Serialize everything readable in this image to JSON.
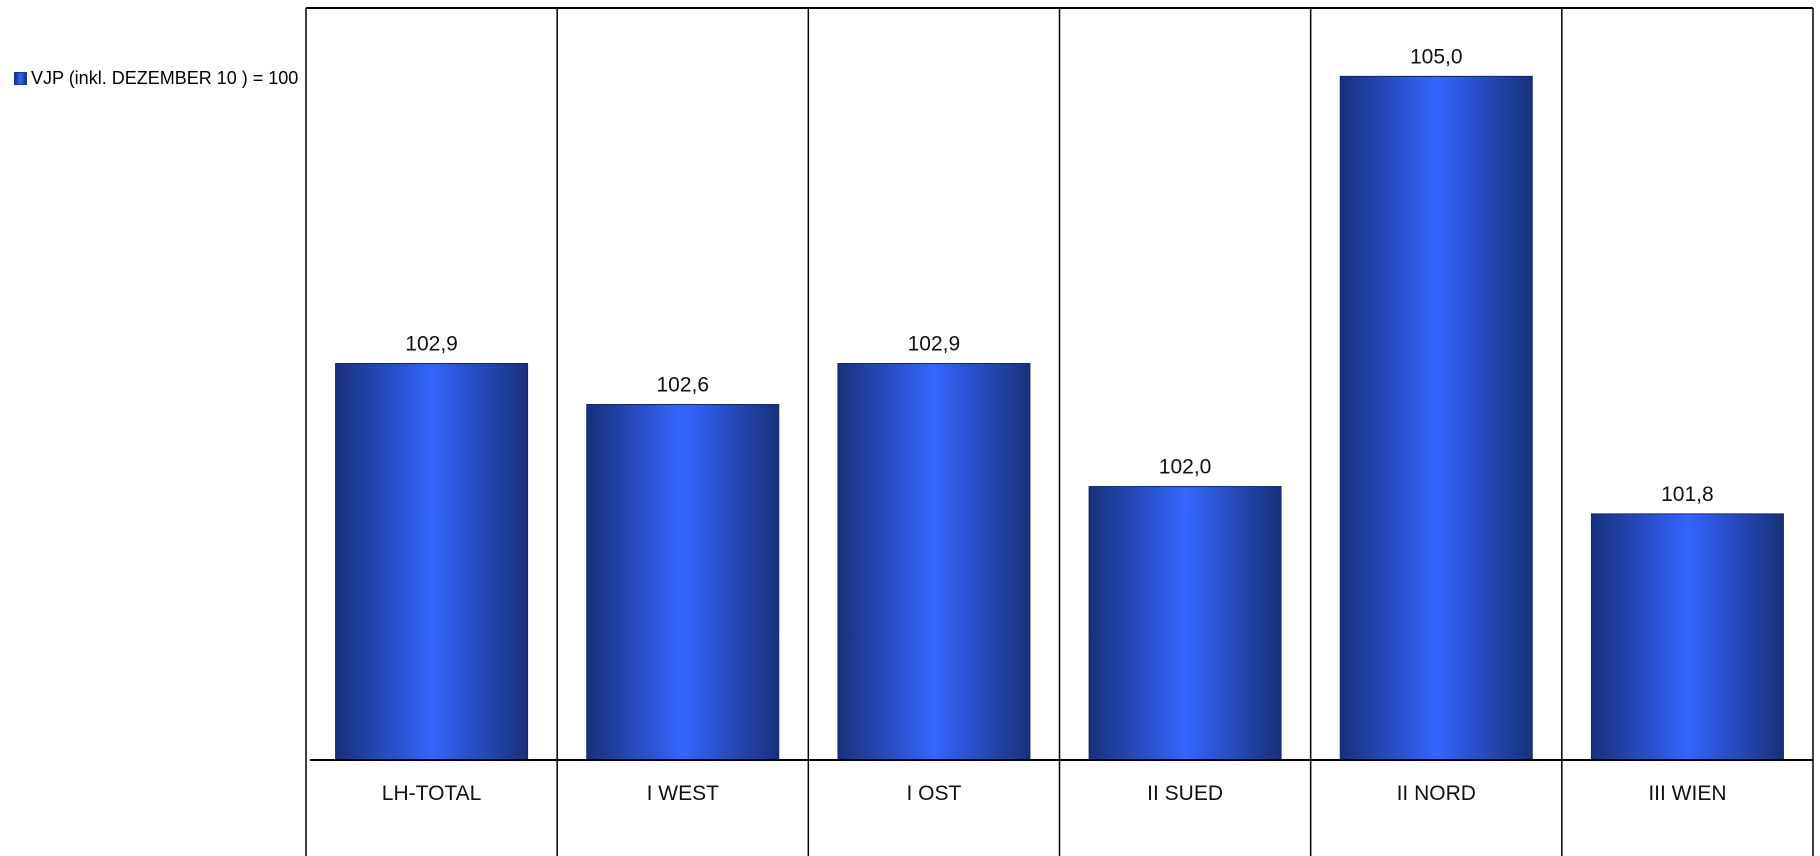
{
  "chart_data": {
    "type": "bar",
    "categories": [
      "LH-TOTAL",
      "I WEST",
      "I OST",
      "II SUED",
      "II NORD",
      "III WIEN"
    ],
    "series": [
      {
        "name": "VJP (inkl. DEZEMBER 10 ) = 100",
        "values": [
          102.9,
          102.6,
          102.9,
          102.0,
          105.0,
          101.8
        ],
        "data_labels": [
          "102,9",
          "102,6",
          "102,9",
          "102,0",
          "105,0",
          "101,8"
        ]
      }
    ],
    "title": "",
    "xlabel": "",
    "ylabel": "",
    "ylim": [
      100,
      105.5
    ],
    "grid": "vertical category separators",
    "legend_position": "top-left",
    "colors": {
      "bar_center": "#3366ff",
      "bar_edge": "#18307a",
      "lines": "#000000"
    }
  }
}
